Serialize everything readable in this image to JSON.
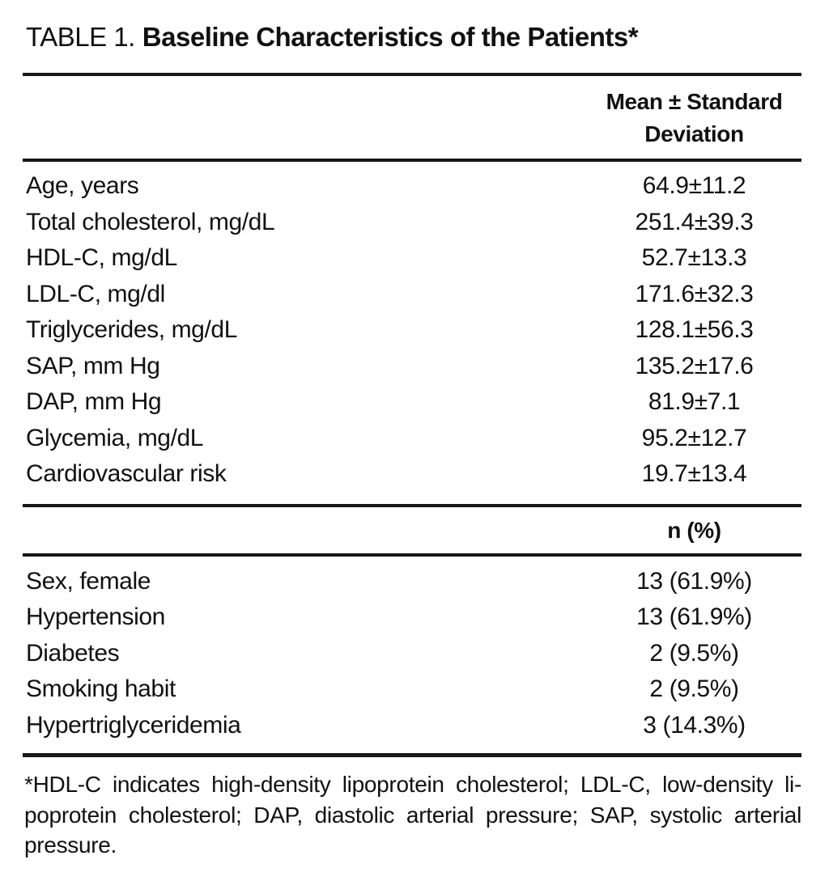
{
  "title": {
    "prefix": "TABLE 1.",
    "main": "Baseline Characteristics of the Patients*"
  },
  "mean_sd_section": {
    "header_line1": "Mean ± Standard",
    "header_line2": "Deviation",
    "rows": [
      {
        "label": "Age, years",
        "value": "64.9±11.2"
      },
      {
        "label": "Total cholesterol, mg/dL",
        "value": "251.4±39.3"
      },
      {
        "label": "HDL-C, mg/dL",
        "value": "52.7±13.3"
      },
      {
        "label": "LDL-C, mg/dl",
        "value": "171.6±32.3"
      },
      {
        "label": "Triglycerides, mg/dL",
        "value": "128.1±56.3"
      },
      {
        "label": "SAP, mm Hg",
        "value": "135.2±17.6"
      },
      {
        "label": "DAP, mm Hg",
        "value": "81.9±7.1"
      },
      {
        "label": "Glycemia, mg/dL",
        "value": "95.2±12.7"
      },
      {
        "label": "Cardiovascular risk",
        "value": "19.7±13.4"
      }
    ]
  },
  "count_section": {
    "header": "n (%)",
    "rows": [
      {
        "label": "Sex, female",
        "value": "13 (61.9%)"
      },
      {
        "label": "Hypertension",
        "value": "13 (61.9%)"
      },
      {
        "label": "Diabetes",
        "value": "2 (9.5%)"
      },
      {
        "label": "Smoking habit",
        "value": "2 (9.5%)"
      },
      {
        "label": "Hypertriglyceridemia",
        "value": "3 (14.3%)"
      }
    ]
  },
  "footnote": {
    "line1": "*HDL-C indicates high-density lipoprotein cholesterol; LDL-C, low-density li-",
    "line2": "poprotein cholesterol; DAP, diastolic arterial pressure; SAP, systolic arterial",
    "line3": "pressure."
  }
}
